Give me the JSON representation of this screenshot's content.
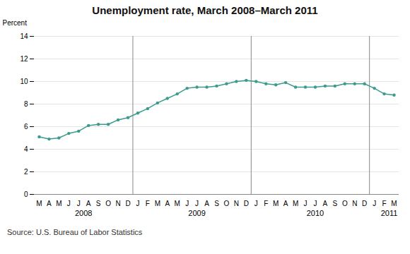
{
  "chart_data": {
    "type": "line",
    "title": "Unemployment rate, March 2008–March 2011",
    "ylabel": "Percent",
    "source": "Source: U.S. Bureau of Labor Statistics",
    "categories": [
      "M",
      "A",
      "M",
      "J",
      "J",
      "A",
      "S",
      "O",
      "N",
      "D",
      "J",
      "F",
      "M",
      "A",
      "M",
      "J",
      "J",
      "A",
      "S",
      "O",
      "N",
      "D",
      "J",
      "F",
      "M",
      "A",
      "M",
      "J",
      "J",
      "A",
      "S",
      "O",
      "N",
      "D",
      "J",
      "F",
      "M"
    ],
    "values": [
      5.1,
      4.9,
      5.0,
      5.4,
      5.6,
      6.1,
      6.2,
      6.2,
      6.6,
      6.8,
      7.2,
      7.6,
      8.1,
      8.5,
      8.9,
      9.4,
      9.5,
      9.5,
      9.6,
      9.8,
      10.0,
      10.1,
      10.0,
      9.8,
      9.7,
      9.9,
      9.5,
      9.5,
      9.5,
      9.6,
      9.6,
      9.8,
      9.8,
      9.8,
      9.4,
      8.9,
      8.8
    ],
    "color": "#3a9b8e",
    "marker": "circle",
    "ylim": [
      0,
      14
    ],
    "yticks": [
      0,
      2,
      4,
      6,
      8,
      10,
      12,
      14
    ],
    "grid": true,
    "year_labels": [
      {
        "label": "2008",
        "pos": 4.5
      },
      {
        "label": "2009",
        "pos": 16.0
      },
      {
        "label": "2010",
        "pos": 28.0
      },
      {
        "label": "2011",
        "pos": 35.5
      }
    ],
    "year_dividers": [
      9.5,
      21.5,
      33.5
    ]
  }
}
